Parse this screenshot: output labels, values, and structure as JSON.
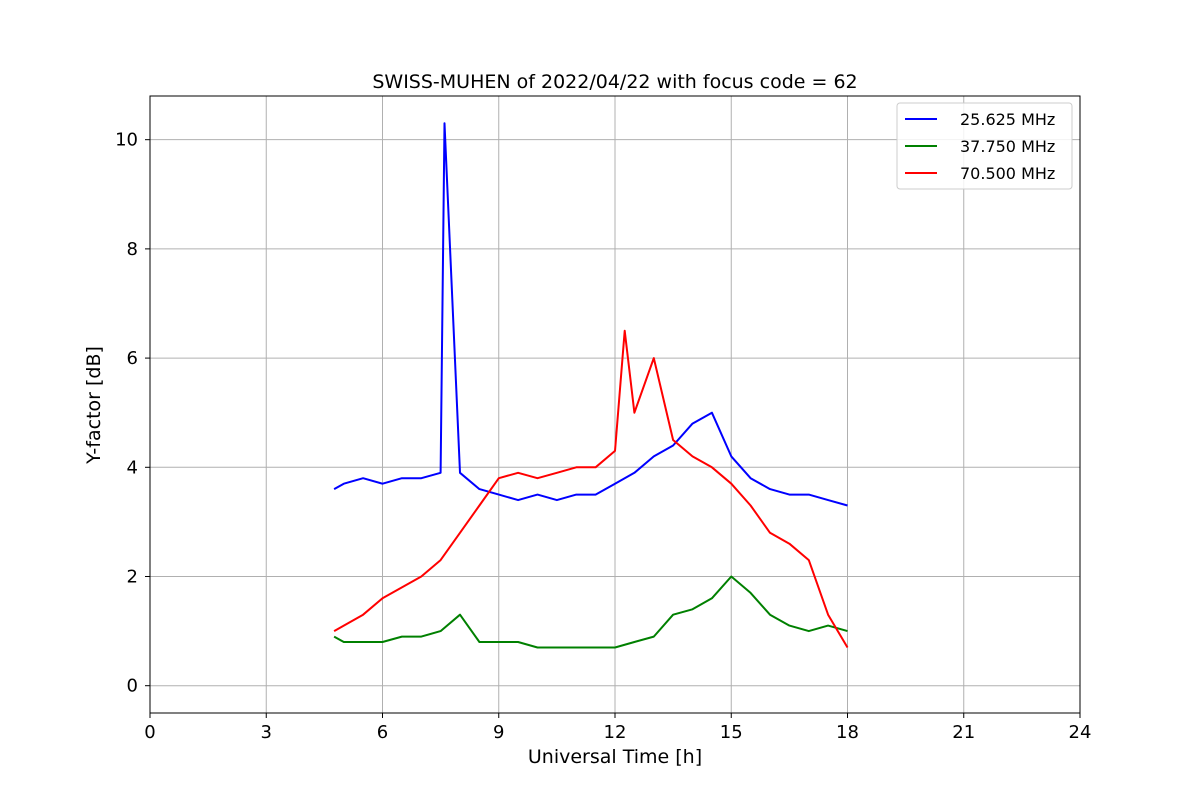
{
  "chart_data": {
    "type": "line",
    "title": "SWISS-MUHEN of 2022/04/22 with focus code = 62",
    "xlabel": "Universal Time [h]",
    "ylabel": "Y-factor [dB]",
    "xlim": [
      0,
      24
    ],
    "ylim": [
      -0.5,
      10.8
    ],
    "xticks": [
      0,
      3,
      6,
      9,
      12,
      15,
      18,
      21,
      24
    ],
    "yticks": [
      0,
      2,
      4,
      6,
      8,
      10
    ],
    "grid": true,
    "legend_position": "top-right",
    "series": [
      {
        "name": "25.625 MHz",
        "color": "#0000ff",
        "x": [
          4.75,
          5.0,
          5.5,
          6.0,
          6.5,
          7.0,
          7.5,
          7.6,
          8.0,
          8.5,
          9.0,
          9.5,
          10.0,
          10.5,
          11.0,
          11.5,
          12.0,
          12.5,
          13.0,
          13.5,
          14.0,
          14.5,
          15.0,
          15.5,
          16.0,
          16.5,
          17.0,
          17.5,
          18.0
        ],
        "y": [
          3.6,
          3.7,
          3.8,
          3.7,
          3.8,
          3.8,
          3.9,
          10.3,
          3.9,
          3.6,
          3.5,
          3.4,
          3.5,
          3.4,
          3.5,
          3.5,
          3.7,
          3.9,
          4.2,
          4.4,
          4.8,
          5.0,
          4.2,
          3.8,
          3.6,
          3.5,
          3.5,
          3.4,
          3.3
        ]
      },
      {
        "name": "37.750 MHz",
        "color": "#008000",
        "x": [
          4.75,
          5.0,
          5.5,
          6.0,
          6.5,
          7.0,
          7.5,
          8.0,
          8.5,
          9.0,
          9.5,
          10.0,
          10.5,
          11.0,
          11.5,
          12.0,
          12.5,
          13.0,
          13.5,
          14.0,
          14.5,
          15.0,
          15.5,
          16.0,
          16.5,
          17.0,
          17.5,
          18.0
        ],
        "y": [
          0.9,
          0.8,
          0.8,
          0.8,
          0.9,
          0.9,
          1.0,
          1.3,
          0.8,
          0.8,
          0.8,
          0.7,
          0.7,
          0.7,
          0.7,
          0.7,
          0.8,
          0.9,
          1.3,
          1.4,
          1.6,
          2.0,
          1.7,
          1.3,
          1.1,
          1.0,
          1.1,
          1.0
        ]
      },
      {
        "name": "70.500 MHz",
        "color": "#ff0000",
        "x": [
          4.75,
          5.0,
          5.5,
          6.0,
          6.5,
          7.0,
          7.5,
          8.0,
          8.5,
          9.0,
          9.5,
          10.0,
          10.5,
          11.0,
          11.5,
          12.0,
          12.25,
          12.5,
          13.0,
          13.5,
          14.0,
          14.5,
          15.0,
          15.5,
          16.0,
          16.5,
          17.0,
          17.5,
          18.0
        ],
        "y": [
          1.0,
          1.1,
          1.3,
          1.6,
          1.8,
          2.0,
          2.3,
          2.8,
          3.3,
          3.8,
          3.9,
          3.8,
          3.9,
          4.0,
          4.0,
          4.3,
          6.5,
          5.0,
          6.0,
          4.5,
          4.2,
          4.0,
          3.7,
          3.3,
          2.8,
          2.6,
          2.3,
          1.3,
          0.7
        ]
      }
    ]
  }
}
